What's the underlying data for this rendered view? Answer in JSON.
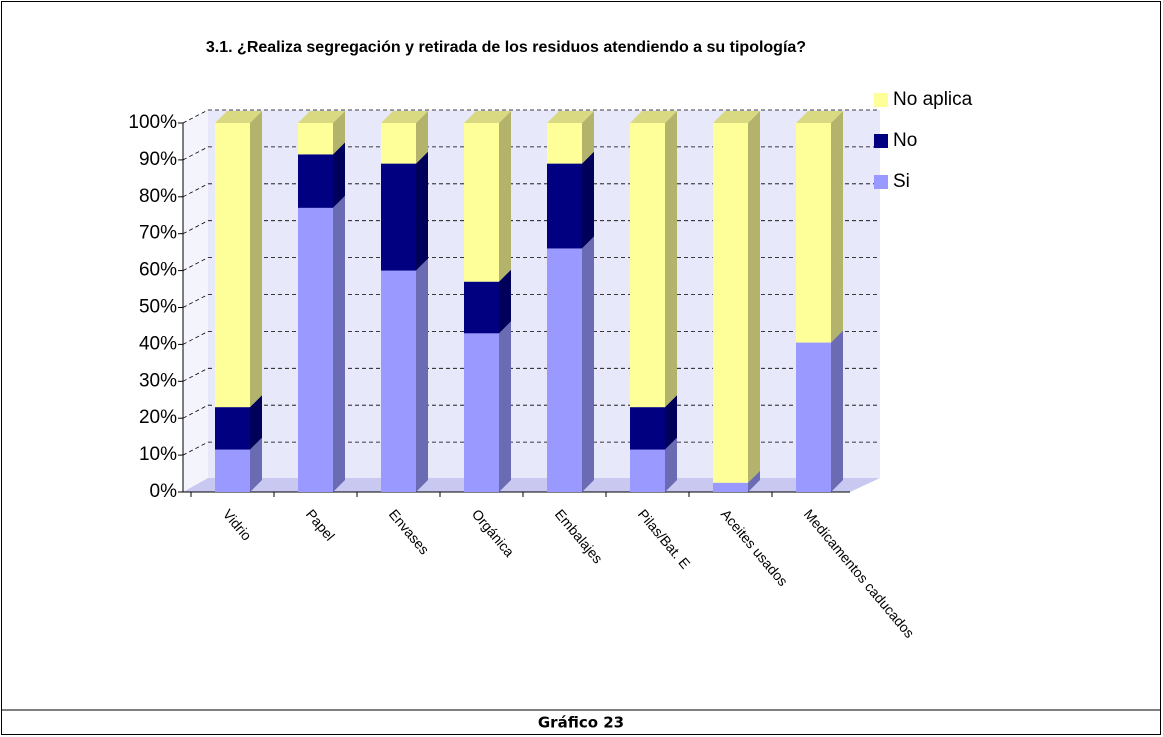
{
  "chart_data": {
    "type": "bar",
    "stacked": true,
    "title": "3.1. ¿Realiza segregación y retirada de los residuos atendiendo a su tipología?",
    "categories": [
      "Vidrio",
      "Papel",
      "Envases",
      "Orgánica",
      "Embalajes",
      "Pilas/Bat. E",
      "Aceites usados",
      "Medicamentos caducados"
    ],
    "series": [
      {
        "name": "Si",
        "color": "#9999ff",
        "values": [
          11.5,
          77,
          60,
          43,
          66,
          11.5,
          2.5,
          40.5
        ]
      },
      {
        "name": "No",
        "color": "#000080",
        "values": [
          11.5,
          14.5,
          29,
          14,
          23,
          11.5,
          0,
          0
        ]
      },
      {
        "name": "No aplica",
        "color": "#ffff99",
        "values": [
          77,
          8.5,
          11,
          43,
          11,
          77,
          97.5,
          59.5
        ]
      }
    ],
    "ylim": [
      0,
      100
    ],
    "yticks": [
      {
        "value": 0,
        "label": "0%"
      },
      {
        "value": 10,
        "label": "10%"
      },
      {
        "value": 20,
        "label": "20%"
      },
      {
        "value": 30,
        "label": "30%"
      },
      {
        "value": 40,
        "label": "40%"
      },
      {
        "value": 50,
        "label": "50%"
      },
      {
        "value": 60,
        "label": "60%"
      },
      {
        "value": 70,
        "label": "70%"
      },
      {
        "value": 80,
        "label": "80%"
      },
      {
        "value": 90,
        "label": "90%"
      },
      {
        "value": 100,
        "label": "100%"
      }
    ],
    "grid": true,
    "legend": "right"
  },
  "caption": "Gráfico 23"
}
